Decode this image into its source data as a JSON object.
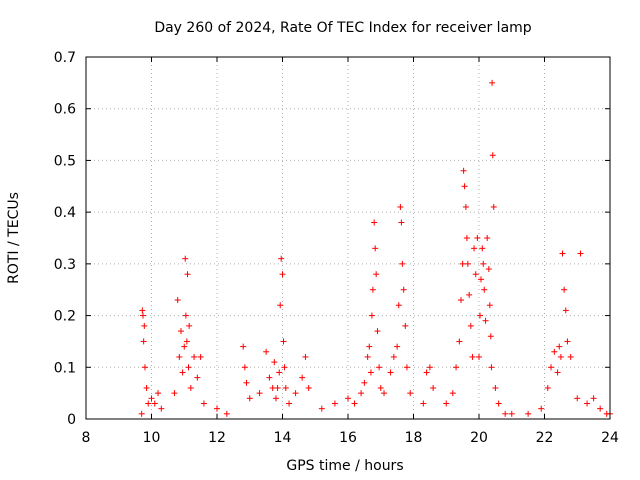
{
  "chart_data": {
    "type": "scatter",
    "title": "Day 260 of 2024, Rate Of TEC Index for receiver lamp",
    "xlabel": "GPS time / hours",
    "ylabel": "ROTI / TECUs",
    "xlim": [
      8,
      24
    ],
    "ylim": [
      0,
      0.7
    ],
    "x_ticks": [
      8,
      10,
      12,
      14,
      16,
      18,
      20,
      22,
      24
    ],
    "x_tick_labels": [
      "8",
      "10",
      "12",
      "14",
      "16",
      "18",
      "20",
      "22",
      "24"
    ],
    "y_ticks": [
      0,
      0.1,
      0.2,
      0.3,
      0.4,
      0.5,
      0.6,
      0.7
    ],
    "y_tick_labels": [
      "0",
      "0.1",
      "0.2",
      "0.3",
      "0.4",
      "0.5",
      "0.6",
      "0.7"
    ],
    "grid": true,
    "marker": "+",
    "marker_color": "#ff0000",
    "series": [
      {
        "name": "ROTI",
        "x": [
          9.7,
          9.72,
          9.74,
          9.76,
          9.78,
          9.8,
          9.85,
          9.9,
          10.0,
          10.1,
          10.2,
          10.3,
          10.7,
          10.8,
          10.85,
          10.9,
          10.95,
          11.0,
          11.03,
          11.05,
          11.08,
          11.1,
          11.13,
          11.15,
          11.2,
          11.3,
          11.4,
          11.5,
          11.6,
          12.0,
          12.3,
          12.8,
          12.85,
          12.9,
          13.0,
          13.3,
          13.5,
          13.6,
          13.7,
          13.75,
          13.8,
          13.85,
          13.9,
          13.93,
          13.96,
          14.0,
          14.03,
          14.06,
          14.1,
          14.2,
          14.4,
          14.6,
          14.7,
          14.8,
          15.2,
          15.6,
          16.0,
          16.2,
          16.4,
          16.5,
          16.6,
          16.65,
          16.7,
          16.73,
          16.76,
          16.8,
          16.83,
          16.86,
          16.9,
          16.95,
          17.0,
          17.1,
          17.3,
          17.4,
          17.5,
          17.55,
          17.6,
          17.63,
          17.66,
          17.7,
          17.75,
          17.8,
          17.9,
          18.3,
          18.4,
          18.5,
          18.6,
          19.0,
          19.2,
          19.3,
          19.4,
          19.45,
          19.5,
          19.53,
          19.56,
          19.6,
          19.63,
          19.66,
          19.7,
          19.75,
          19.8,
          19.85,
          19.9,
          19.95,
          20.0,
          20.03,
          20.06,
          20.1,
          20.13,
          20.16,
          20.2,
          20.25,
          20.3,
          20.33,
          20.36,
          20.38,
          20.4,
          20.42,
          20.45,
          20.5,
          20.6,
          20.8,
          21.0,
          21.5,
          21.9,
          22.1,
          22.2,
          22.3,
          22.4,
          22.45,
          22.5,
          22.55,
          22.6,
          22.65,
          22.7,
          22.8,
          23.0,
          23.1,
          23.3,
          23.5,
          23.7,
          23.9,
          24.0
        ],
        "y": [
          0.01,
          0.21,
          0.2,
          0.15,
          0.18,
          0.1,
          0.06,
          0.03,
          0.04,
          0.03,
          0.05,
          0.02,
          0.05,
          0.23,
          0.12,
          0.17,
          0.09,
          0.14,
          0.31,
          0.2,
          0.15,
          0.28,
          0.1,
          0.18,
          0.06,
          0.12,
          0.08,
          0.12,
          0.03,
          0.02,
          0.01,
          0.14,
          0.1,
          0.07,
          0.04,
          0.05,
          0.13,
          0.08,
          0.06,
          0.11,
          0.04,
          0.06,
          0.09,
          0.22,
          0.31,
          0.28,
          0.15,
          0.1,
          0.06,
          0.03,
          0.05,
          0.08,
          0.12,
          0.06,
          0.02,
          0.03,
          0.04,
          0.03,
          0.05,
          0.07,
          0.12,
          0.14,
          0.09,
          0.2,
          0.25,
          0.38,
          0.33,
          0.28,
          0.17,
          0.1,
          0.06,
          0.05,
          0.09,
          0.12,
          0.14,
          0.22,
          0.41,
          0.38,
          0.3,
          0.25,
          0.18,
          0.1,
          0.05,
          0.03,
          0.09,
          0.1,
          0.06,
          0.03,
          0.05,
          0.1,
          0.15,
          0.23,
          0.3,
          0.48,
          0.45,
          0.41,
          0.35,
          0.3,
          0.24,
          0.18,
          0.12,
          0.33,
          0.28,
          0.35,
          0.12,
          0.2,
          0.27,
          0.33,
          0.3,
          0.25,
          0.19,
          0.35,
          0.29,
          0.22,
          0.16,
          0.1,
          0.65,
          0.51,
          0.41,
          0.06,
          0.03,
          0.01,
          0.01,
          0.01,
          0.02,
          0.06,
          0.1,
          0.13,
          0.09,
          0.14,
          0.12,
          0.32,
          0.25,
          0.21,
          0.15,
          0.12,
          0.04,
          0.32,
          0.03,
          0.04,
          0.02,
          0.01,
          0.01
        ]
      }
    ]
  }
}
